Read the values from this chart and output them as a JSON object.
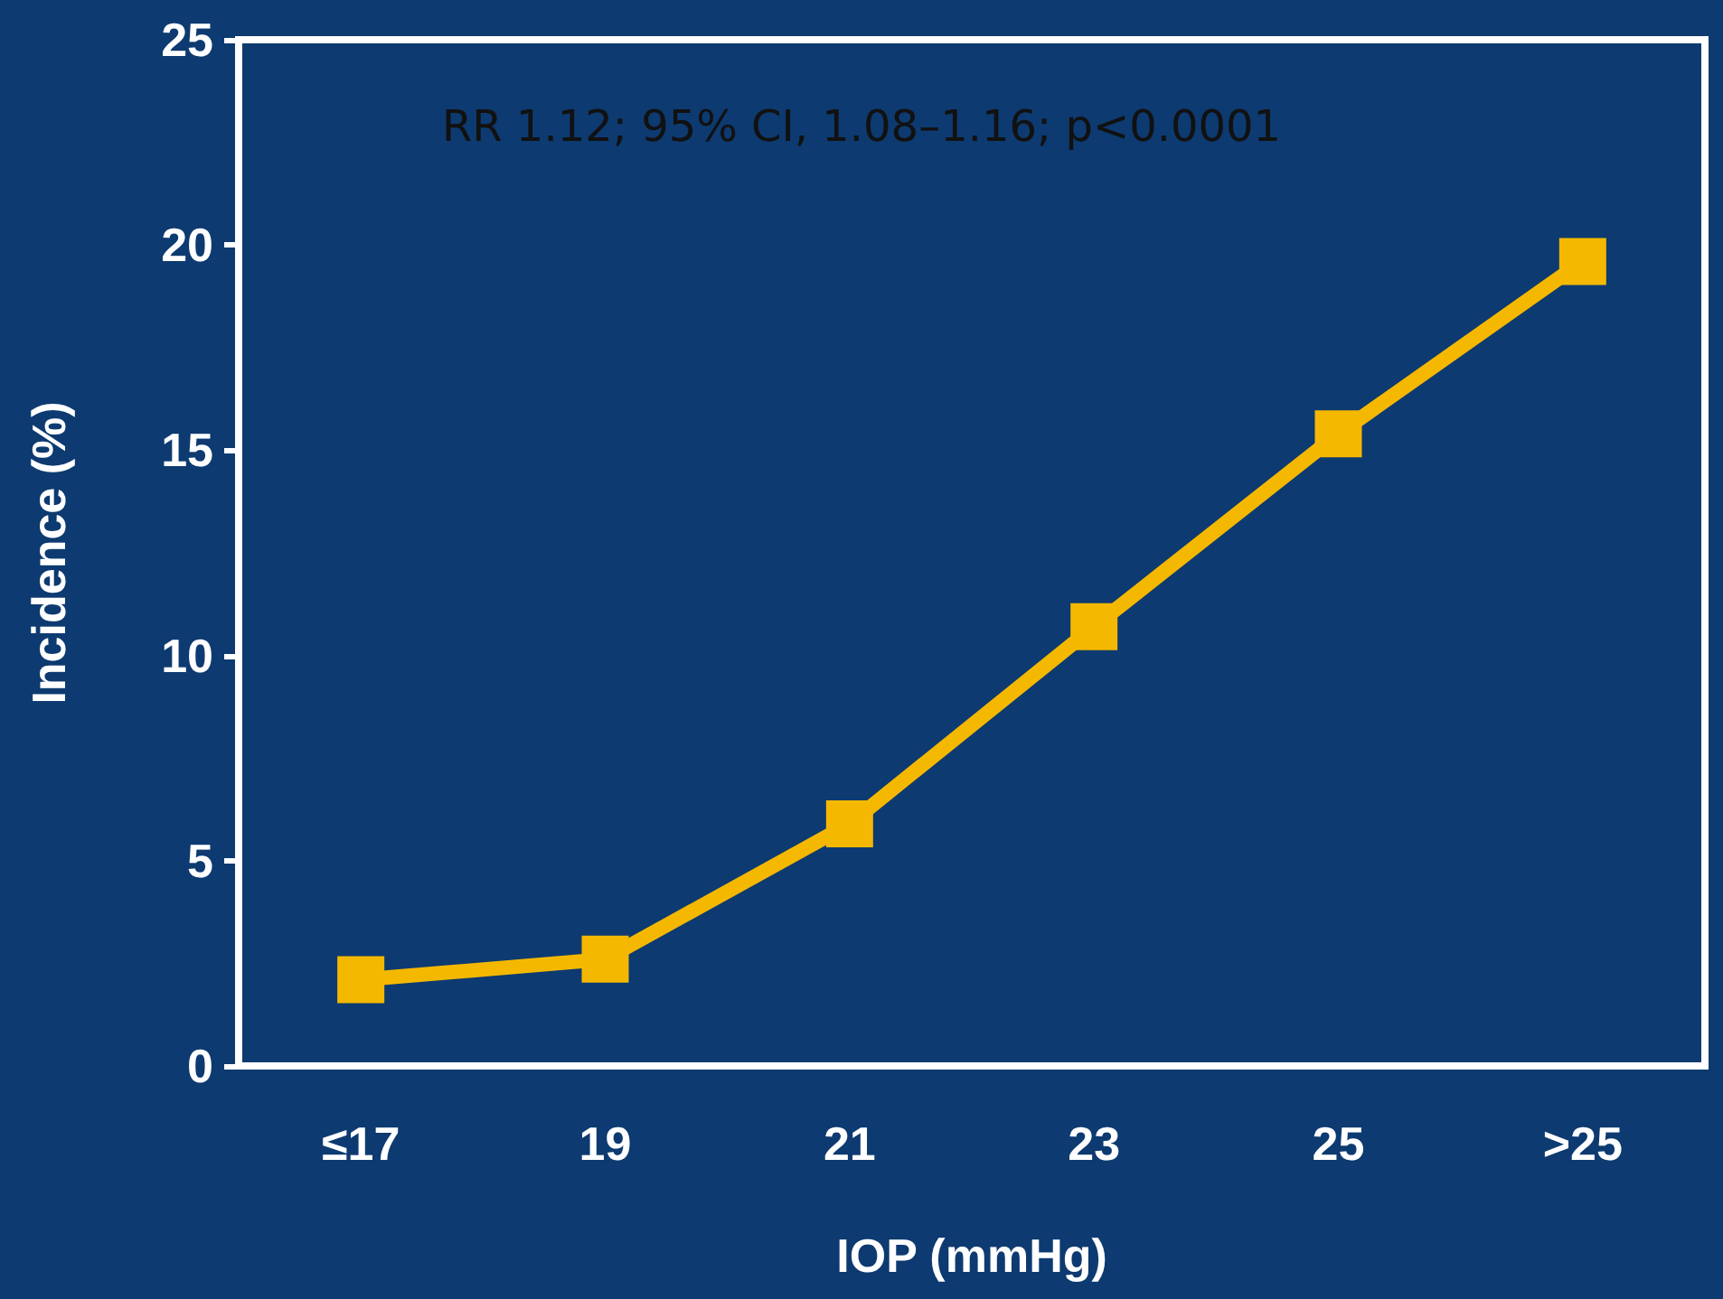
{
  "chart_data": {
    "type": "line",
    "xlabel": "IOP (mmHg)",
    "ylabel": "Incidence (%)",
    "annotations": [
      "RR 1.12; 95% CI, 1.08–1.16; p<0.0001"
    ],
    "categories": [
      "≤17",
      "19",
      "21",
      "23",
      "25",
      ">25"
    ],
    "series": [
      {
        "color": "#f5b800",
        "values": [
          2.1,
          2.6,
          5.9,
          10.7,
          15.4,
          19.6
        ]
      }
    ],
    "ylim": [
      0,
      25
    ],
    "yticks": [
      0,
      5,
      10,
      15,
      20,
      25
    ],
    "grid": false,
    "marker": "square",
    "line_style": "solid"
  }
}
